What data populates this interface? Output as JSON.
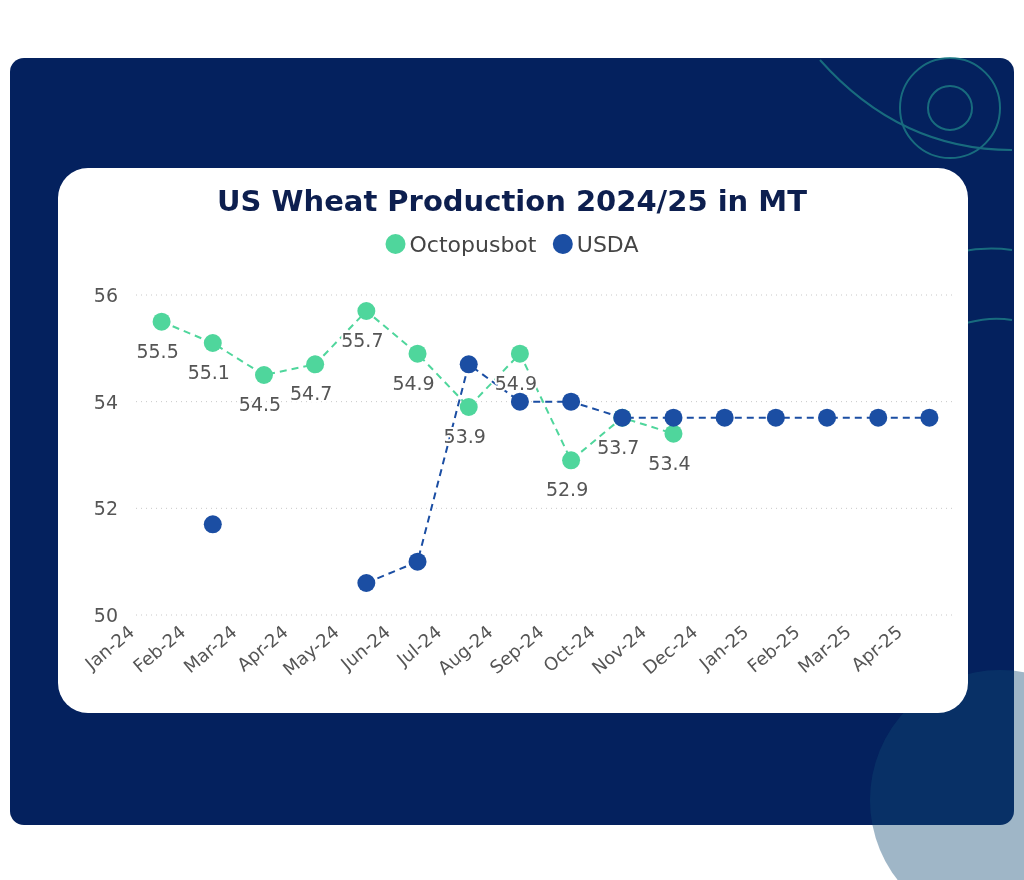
{
  "chart_data": {
    "type": "line",
    "title": "US Wheat Production 2024/25 in MT",
    "categories": [
      "Jan-24",
      "Feb-24",
      "Mar-24",
      "Apr-24",
      "May-24",
      "Jun-24",
      "Jul-24",
      "Aug-24",
      "Sep-24",
      "Oct-24",
      "Nov-24",
      "Dec-24",
      "Jan-25",
      "Feb-25",
      "Mar-25",
      "Apr-25"
    ],
    "series": [
      {
        "name": "Octopusbot",
        "color": "#4fd69c",
        "marker": "circle",
        "line_style": "dashed",
        "data_labels": true,
        "values": [
          55.5,
          55.1,
          54.5,
          54.7,
          55.7,
          54.9,
          53.9,
          54.9,
          52.9,
          53.7,
          53.4,
          null,
          null,
          null,
          null,
          null
        ]
      },
      {
        "name": "USDA",
        "color": "#1b4ea3",
        "marker": "circle",
        "line_style": "dashed",
        "values": [
          null,
          51.7,
          null,
          null,
          50.6,
          51.0,
          54.7,
          54.0,
          54.0,
          53.7,
          53.7,
          53.7,
          53.7,
          53.7,
          53.7,
          53.7
        ]
      }
    ],
    "ylim": [
      50,
      56
    ],
    "yticks": [
      50,
      52,
      54,
      56
    ],
    "grid": true,
    "legend": "top"
  }
}
